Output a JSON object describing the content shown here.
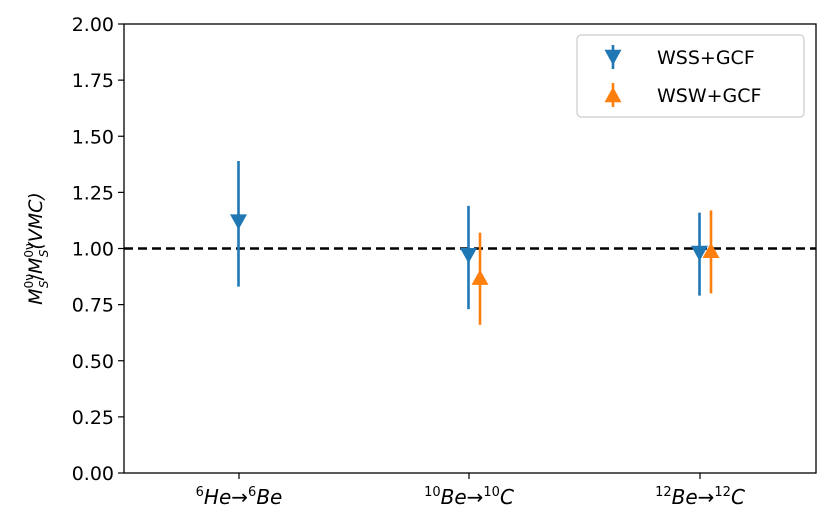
{
  "chart_data": {
    "type": "errorbar",
    "title": "",
    "xlabel": "",
    "ylabel": "M_S^{0ν}/M_S^{0ν}(VMC)",
    "ylim": [
      0,
      2
    ],
    "yticks": [
      "0.00",
      "0.25",
      "0.50",
      "0.75",
      "1.00",
      "1.25",
      "1.50",
      "1.75",
      "2.00"
    ],
    "categories": [
      {
        "key": "he6",
        "mass_pre": "6",
        "from": "He",
        "mass_post": "6",
        "to": "Be"
      },
      {
        "key": "be10",
        "mass_pre": "10",
        "from": "Be",
        "mass_post": "10",
        "to": "C"
      },
      {
        "key": "be12",
        "mass_pre": "12",
        "from": "Be",
        "mass_post": "12",
        "to": "C"
      }
    ],
    "arrow": "→",
    "reference_line": 1.0,
    "legend_position": "upper-right",
    "series": [
      {
        "name": "WSS+GCF",
        "color": "#1f77b4",
        "marker": "triangle-down",
        "points": [
          {
            "category": 0,
            "value": 1.12,
            "low": 0.83,
            "high": 1.39
          },
          {
            "category": 1,
            "value": 0.97,
            "low": 0.73,
            "high": 1.19
          },
          {
            "category": 2,
            "value": 0.98,
            "low": 0.79,
            "high": 1.16
          }
        ]
      },
      {
        "name": "WSW+GCF",
        "color": "#ff7f0e",
        "marker": "triangle-up",
        "points": [
          {
            "category": 1,
            "value": 0.87,
            "low": 0.66,
            "high": 1.07
          },
          {
            "category": 2,
            "value": 0.99,
            "low": 0.8,
            "high": 1.17
          }
        ]
      }
    ]
  }
}
